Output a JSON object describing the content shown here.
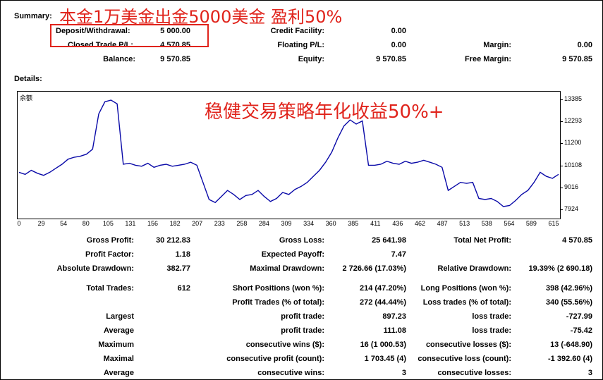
{
  "overlay": {
    "headline": "本金1万美金出金5000美金 盈利50%",
    "chart_caption": "稳健交易策略年化收益50%+"
  },
  "summary": {
    "title": "Summary:",
    "deposit_label": "Deposit/Withdrawal:",
    "deposit_value": "5 000.00",
    "closed_label": "Closed Trade P/L:",
    "closed_value": "4 570.85",
    "balance_label": "Balance:",
    "balance_value": "9 570.85",
    "credit_label": "Credit Facility:",
    "credit_value": "0.00",
    "floating_label": "Floating P/L:",
    "floating_value": "0.00",
    "equity_label": "Equity:",
    "equity_value": "9 570.85",
    "margin_label": "Margin:",
    "margin_value": "0.00",
    "free_margin_label": "Free Margin:",
    "free_margin_value": "9 570.85"
  },
  "details_title": "Details:",
  "chart_data": {
    "type": "line",
    "series": [
      {
        "name": "余额",
        "values": [
          9800,
          9700,
          9900,
          9750,
          9650,
          9800,
          10000,
          10200,
          10450,
          10550,
          10600,
          10700,
          10950,
          12700,
          13300,
          13385,
          13200,
          10200,
          10250,
          10150,
          10100,
          10250,
          10050,
          10150,
          10200,
          10100,
          10150,
          10200,
          10300,
          10150,
          9300,
          8450,
          8300,
          8600,
          8900,
          8700,
          8450,
          8650,
          8700,
          8900,
          8600,
          8350,
          8500,
          8800,
          8700,
          8950,
          9100,
          9300,
          9600,
          9900,
          10300,
          10800,
          11500,
          12100,
          12400,
          12200,
          12350,
          10150,
          10150,
          10200,
          10350,
          10250,
          10200,
          10350,
          10250,
          10300,
          10400,
          10300,
          10200,
          10050,
          8900,
          9100,
          9300,
          9250,
          9300,
          8500,
          8450,
          8500,
          8350,
          8100,
          8150,
          8400,
          8700,
          8900,
          9300,
          9800,
          9600,
          9500,
          9700
        ]
      }
    ],
    "y_ticks": [
      "13385",
      "12293",
      "11200",
      "10108",
      "9016",
      "7924"
    ],
    "x_ticks": [
      "0",
      "29",
      "54",
      "80",
      "105",
      "131",
      "156",
      "182",
      "207",
      "233",
      "258",
      "284",
      "309",
      "334",
      "360",
      "385",
      "411",
      "436",
      "462",
      "487",
      "513",
      "538",
      "564",
      "589",
      "615"
    ],
    "ylim": [
      7924,
      13385
    ],
    "xlim": [
      0,
      624
    ],
    "grid": false
  },
  "stats": {
    "gross_profit_label": "Gross Profit:",
    "gross_profit_value": "30 212.83",
    "gross_loss_label": "Gross Loss:",
    "gross_loss_value": "25 641.98",
    "total_net_label": "Total Net Profit:",
    "total_net_value": "4 570.85",
    "profit_factor_label": "Profit Factor:",
    "profit_factor_value": "1.18",
    "expected_payoff_label": "Expected Payoff:",
    "expected_payoff_value": "7.47",
    "abs_dd_label": "Absolute Drawdown:",
    "abs_dd_value": "382.77",
    "max_dd_label": "Maximal Drawdown:",
    "max_dd_value": "2 726.66 (17.03%)",
    "rel_dd_label": "Relative Drawdown:",
    "rel_dd_value": "19.39% (2 690.18)",
    "total_trades_label": "Total Trades:",
    "total_trades_value": "612",
    "short_label": "Short Positions (won %):",
    "short_value": "214 (47.20%)",
    "long_label": "Long Positions (won %):",
    "long_value": "398 (42.96%)",
    "profit_trades_label": "Profit Trades (% of total):",
    "profit_trades_value": "272 (44.44%)",
    "loss_trades_label": "Loss trades (% of total):",
    "loss_trades_value": "340 (55.56%)",
    "largest_label": "Largest",
    "largest_profit_label": "profit trade:",
    "largest_profit_value": "897.23",
    "largest_loss_label": "loss trade:",
    "largest_loss_value": "-727.99",
    "average_label": "Average",
    "average_profit_label": "profit trade:",
    "average_profit_value": "111.08",
    "average_loss_label": "loss trade:",
    "average_loss_value": "-75.42",
    "maximum_label": "Maximum",
    "max_cons_wins_label": "consecutive wins ($):",
    "max_cons_wins_value": "16 (1 000.53)",
    "max_cons_losses_label": "consecutive losses ($):",
    "max_cons_losses_value": "13 (-648.90)",
    "maximal_label": "Maximal",
    "maximal_profit_label": "consecutive profit (count):",
    "maximal_profit_value": "1 703.45 (4)",
    "maximal_loss_label": "consecutive loss (count):",
    "maximal_loss_value": "-1 392.60 (4)",
    "average2_label": "Average",
    "avg_cons_wins_label": "consecutive wins:",
    "avg_cons_wins_value": "3",
    "avg_cons_losses_label": "consecutive losses:",
    "avg_cons_losses_value": "3"
  }
}
